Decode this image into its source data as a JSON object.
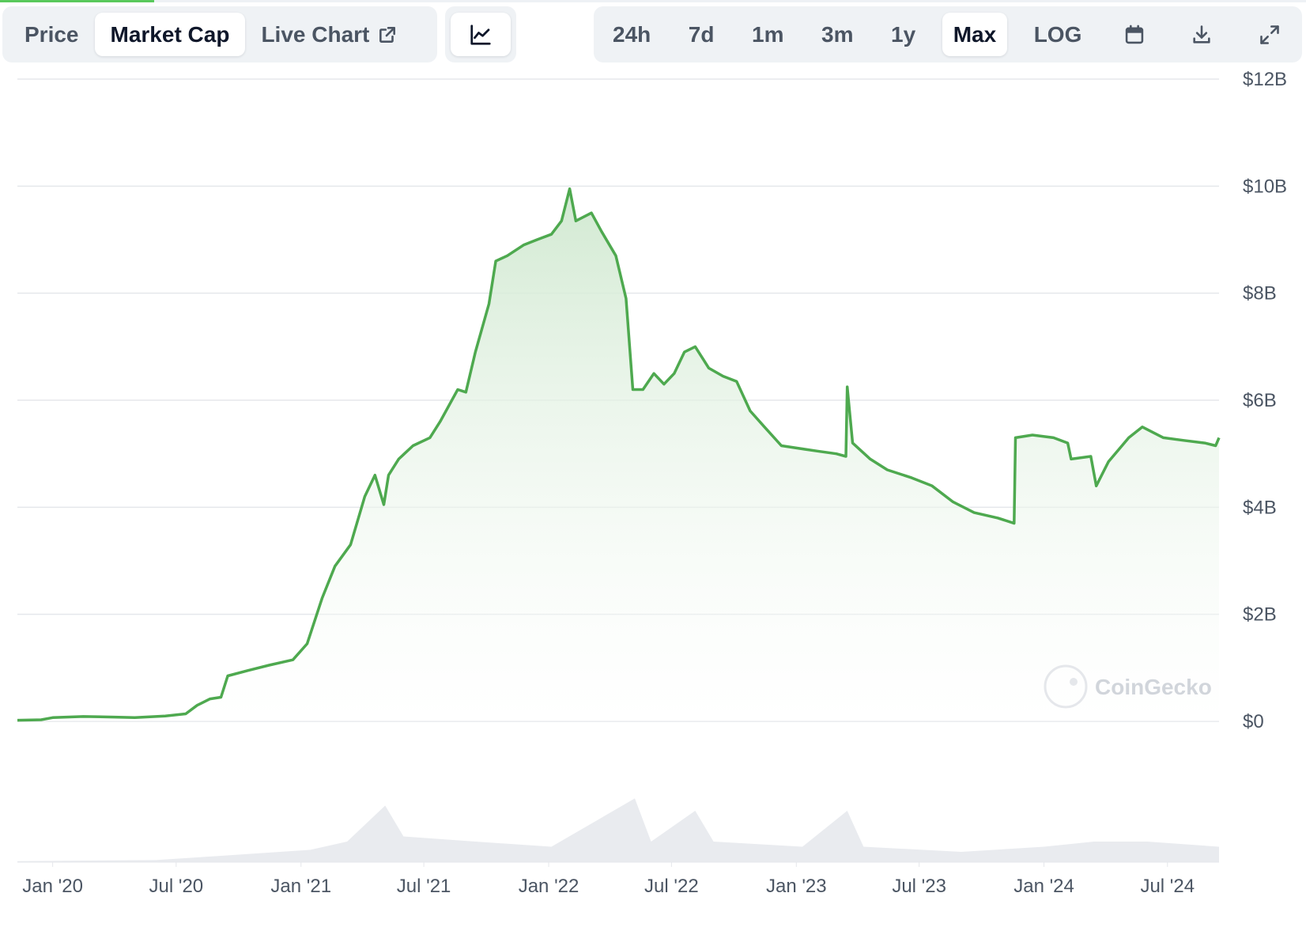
{
  "colors": {
    "accent": "#4ea94f",
    "area_top": "#cfe8cf",
    "grid": "#e5e7eb",
    "volume": "#e9ebef",
    "top_progress": "#59c95c"
  },
  "tabs": [
    {
      "label": "Price",
      "active": false
    },
    {
      "label": "Market Cap",
      "active": true
    },
    {
      "label": "Live Chart",
      "active": false,
      "icon": "external-link-icon"
    }
  ],
  "chart_type_button": {
    "icon": "line-chart-icon",
    "active": true
  },
  "ranges": [
    {
      "label": "24h",
      "active": false
    },
    {
      "label": "7d",
      "active": false
    },
    {
      "label": "1m",
      "active": false
    },
    {
      "label": "3m",
      "active": false
    },
    {
      "label": "1y",
      "active": false
    },
    {
      "label": "Max",
      "active": true
    },
    {
      "label": "LOG",
      "active": false
    }
  ],
  "tool_icons": [
    "calendar-icon",
    "download-icon",
    "fullscreen-icon"
  ],
  "watermark": "CoinGecko",
  "chart_data": {
    "type": "area",
    "title": "",
    "xlabel": "",
    "ylabel": "",
    "series_name": "",
    "ylim": [
      0,
      12
    ],
    "y_unit": "billions USD",
    "y_ticks": [
      {
        "value": 0,
        "label": "$0"
      },
      {
        "value": 2,
        "label": "$2B"
      },
      {
        "value": 4,
        "label": "$4B"
      },
      {
        "value": 6,
        "label": "$6B"
      },
      {
        "value": 8,
        "label": "$8B"
      },
      {
        "value": 10,
        "label": "$10B"
      },
      {
        "value": 12,
        "label": "$12B"
      }
    ],
    "x_ticks": [
      {
        "date": "2020-01-01",
        "label": "Jan '20"
      },
      {
        "date": "2020-07-01",
        "label": "Jul '20"
      },
      {
        "date": "2021-01-01",
        "label": "Jan '21"
      },
      {
        "date": "2021-07-01",
        "label": "Jul '21"
      },
      {
        "date": "2022-01-01",
        "label": "Jan '22"
      },
      {
        "date": "2022-07-01",
        "label": "Jul '22"
      },
      {
        "date": "2023-01-01",
        "label": "Jan '23"
      },
      {
        "date": "2023-07-01",
        "label": "Jul '23"
      },
      {
        "date": "2024-01-01",
        "label": "Jan '24"
      },
      {
        "date": "2024-07-01",
        "label": "Jul '24"
      }
    ],
    "xlim": [
      "2019-11-10",
      "2024-09-15"
    ],
    "grid": true,
    "legend": "none",
    "points": [
      [
        "2019-11-10",
        0.02
      ],
      [
        "2019-12-15",
        0.03
      ],
      [
        "2020-01-01",
        0.07
      ],
      [
        "2020-02-15",
        0.09
      ],
      [
        "2020-04-01",
        0.08
      ],
      [
        "2020-05-01",
        0.07
      ],
      [
        "2020-06-15",
        0.1
      ],
      [
        "2020-07-15",
        0.14
      ],
      [
        "2020-08-01",
        0.3
      ],
      [
        "2020-08-20",
        0.42
      ],
      [
        "2020-09-05",
        0.45
      ],
      [
        "2020-09-15",
        0.85
      ],
      [
        "2020-10-15",
        0.95
      ],
      [
        "2020-11-15",
        1.05
      ],
      [
        "2020-12-20",
        1.15
      ],
      [
        "2021-01-10",
        1.45
      ],
      [
        "2021-02-01",
        2.3
      ],
      [
        "2021-02-20",
        2.9
      ],
      [
        "2021-03-15",
        3.3
      ],
      [
        "2021-04-05",
        4.2
      ],
      [
        "2021-04-20",
        4.6
      ],
      [
        "2021-05-03",
        4.05
      ],
      [
        "2021-05-10",
        4.6
      ],
      [
        "2021-05-25",
        4.9
      ],
      [
        "2021-06-15",
        5.15
      ],
      [
        "2021-07-10",
        5.3
      ],
      [
        "2021-07-25",
        5.6
      ],
      [
        "2021-08-20",
        6.2
      ],
      [
        "2021-09-01",
        6.15
      ],
      [
        "2021-09-15",
        6.9
      ],
      [
        "2021-10-05",
        7.8
      ],
      [
        "2021-10-15",
        8.6
      ],
      [
        "2021-11-01",
        8.7
      ],
      [
        "2021-11-25",
        8.9
      ],
      [
        "2021-12-15",
        9.0
      ],
      [
        "2022-01-05",
        9.1
      ],
      [
        "2022-01-20",
        9.35
      ],
      [
        "2022-02-01",
        9.95
      ],
      [
        "2022-02-10",
        9.35
      ],
      [
        "2022-03-05",
        9.5
      ],
      [
        "2022-03-20",
        9.15
      ],
      [
        "2022-04-10",
        8.7
      ],
      [
        "2022-04-25",
        7.9
      ],
      [
        "2022-05-05",
        6.2
      ],
      [
        "2022-05-20",
        6.2
      ],
      [
        "2022-06-05",
        6.5
      ],
      [
        "2022-06-20",
        6.3
      ],
      [
        "2022-07-05",
        6.5
      ],
      [
        "2022-07-20",
        6.9
      ],
      [
        "2022-08-05",
        7.0
      ],
      [
        "2022-08-25",
        6.6
      ],
      [
        "2022-09-15",
        6.45
      ],
      [
        "2022-10-05",
        6.35
      ],
      [
        "2022-10-25",
        5.8
      ],
      [
        "2022-11-15",
        5.5
      ],
      [
        "2022-12-10",
        5.15
      ],
      [
        "2023-01-05",
        5.1
      ],
      [
        "2023-02-01",
        5.05
      ],
      [
        "2023-03-01",
        5.0
      ],
      [
        "2023-03-15",
        4.95
      ],
      [
        "2023-03-17",
        6.25
      ],
      [
        "2023-03-25",
        5.2
      ],
      [
        "2023-04-20",
        4.9
      ],
      [
        "2023-05-15",
        4.7
      ],
      [
        "2023-06-20",
        4.55
      ],
      [
        "2023-07-20",
        4.4
      ],
      [
        "2023-08-20",
        4.1
      ],
      [
        "2023-09-20",
        3.9
      ],
      [
        "2023-10-25",
        3.8
      ],
      [
        "2023-11-18",
        3.7
      ],
      [
        "2023-11-20",
        5.3
      ],
      [
        "2023-12-15",
        5.35
      ],
      [
        "2024-01-15",
        5.3
      ],
      [
        "2024-02-05",
        5.2
      ],
      [
        "2024-02-10",
        4.9
      ],
      [
        "2024-03-10",
        4.95
      ],
      [
        "2024-03-18",
        4.4
      ],
      [
        "2024-04-05",
        4.85
      ],
      [
        "2024-05-05",
        5.3
      ],
      [
        "2024-05-25",
        5.5
      ],
      [
        "2024-06-25",
        5.3
      ],
      [
        "2024-07-25",
        5.25
      ],
      [
        "2024-08-25",
        5.2
      ],
      [
        "2024-09-10",
        5.15
      ],
      [
        "2024-09-15",
        5.3
      ]
    ],
    "volume_points": [
      [
        "2019-11-10",
        0.01
      ],
      [
        "2020-06-01",
        0.02
      ],
      [
        "2020-09-01",
        0.06
      ],
      [
        "2021-01-15",
        0.12
      ],
      [
        "2021-03-10",
        0.2
      ],
      [
        "2021-05-05",
        0.55
      ],
      [
        "2021-06-01",
        0.25
      ],
      [
        "2021-09-15",
        0.2
      ],
      [
        "2022-01-05",
        0.15
      ],
      [
        "2022-05-08",
        0.62
      ],
      [
        "2022-06-01",
        0.2
      ],
      [
        "2022-08-05",
        0.5
      ],
      [
        "2022-09-01",
        0.2
      ],
      [
        "2023-01-10",
        0.15
      ],
      [
        "2023-03-17",
        0.5
      ],
      [
        "2023-04-10",
        0.15
      ],
      [
        "2023-09-01",
        0.1
      ],
      [
        "2024-01-01",
        0.15
      ],
      [
        "2024-03-15",
        0.2
      ],
      [
        "2024-06-01",
        0.2
      ],
      [
        "2024-09-15",
        0.15
      ]
    ]
  }
}
